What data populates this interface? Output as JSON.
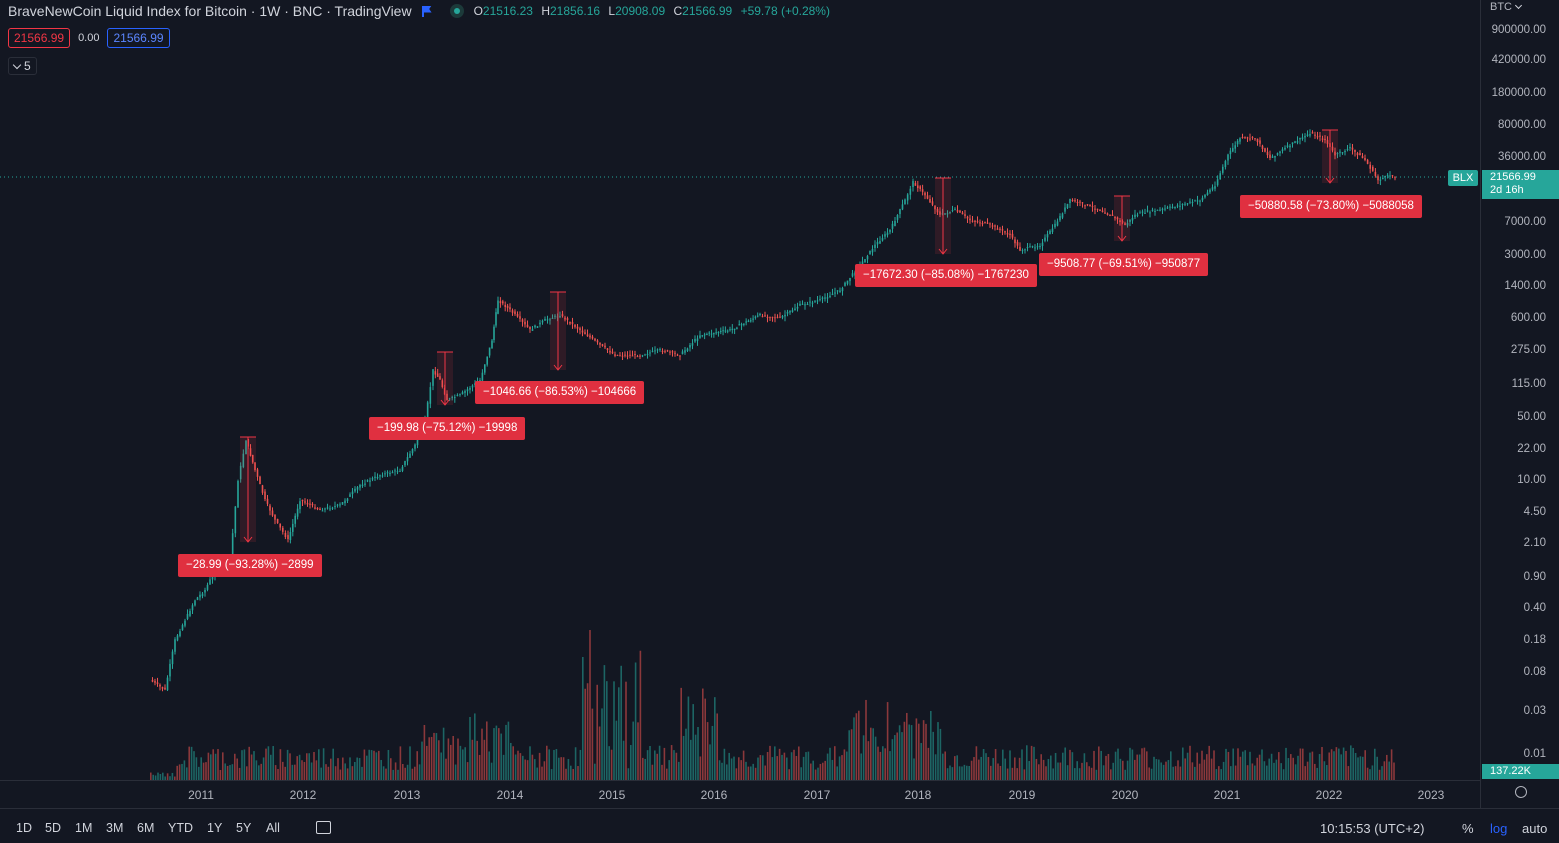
{
  "legend": {
    "title": "BraveNewCoin Liquid Index for Bitcoin · 1W · BNC · TradingView",
    "open_label": "O",
    "open": "21516.23",
    "high_label": "H",
    "high": "21856.16",
    "low_label": "L",
    "low": "20908.09",
    "close_label": "C",
    "close": "21566.99",
    "change": "+59.78 (+0.28%)",
    "sell_price": "21566.99",
    "spread": "0.00",
    "buy_price": "21566.99",
    "indicator_count": "5"
  },
  "price_axis": {
    "currency": "BTC",
    "labels": [
      "900000.00",
      "420000.00",
      "180000.00",
      "80000.00",
      "36000.00",
      "7000.00",
      "3000.00",
      "1400.00",
      "600.00",
      "275.00",
      "115.00",
      "50.00",
      "22.00",
      "10.00",
      "4.50",
      "2.10",
      "0.90",
      "0.40",
      "0.18",
      "0.08",
      "0.03",
      "0.01"
    ],
    "symbol_tag": "BLX",
    "last_price": "21566.99",
    "countdown": "2d 16h",
    "volume_value": "137.22K"
  },
  "time_axis": {
    "years": [
      "2011",
      "2012",
      "2013",
      "2014",
      "2015",
      "2016",
      "2017",
      "2018",
      "2019",
      "2020",
      "2021",
      "2022",
      "2023"
    ]
  },
  "drawdowns": [
    {
      "label": "−28.99 (−93.28%) −2899"
    },
    {
      "label": "−199.98 (−75.12%) −19998"
    },
    {
      "label": "−1046.66 (−86.53%) −104666"
    },
    {
      "label": "−17672.30 (−85.08%) −1767230"
    },
    {
      "label": "−9508.77 (−69.51%) −950877"
    },
    {
      "label": "−50880.58 (−73.80%) −5088058"
    }
  ],
  "toolbar": {
    "ranges": [
      "1D",
      "5D",
      "1M",
      "3M",
      "6M",
      "YTD",
      "1Y",
      "5Y",
      "All"
    ],
    "clock": "10:15:53 (UTC+2)",
    "percent_label": "%",
    "log_label": "log",
    "auto_label": "auto"
  },
  "colors": {
    "up": "#26a69a",
    "down": "#ef5350",
    "accent": "#2962ff",
    "label_red": "#e03040"
  }
}
